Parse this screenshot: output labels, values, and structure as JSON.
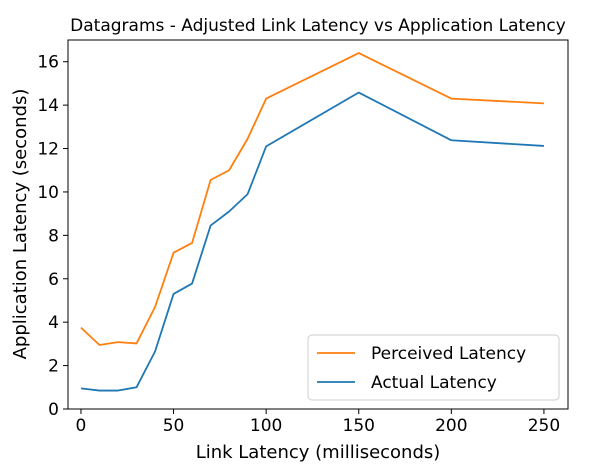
{
  "chart_data": {
    "type": "line",
    "title": "Datagrams - Adjusted Link Latency vs Application Latency",
    "xlabel": "Link Latency (milliseconds)",
    "ylabel": "Application Latency (seconds)",
    "xlim": [
      -7,
      263
    ],
    "ylim": [
      0,
      17
    ],
    "xticks": [
      0,
      50,
      100,
      150,
      200,
      250
    ],
    "yticks": [
      0,
      2,
      4,
      6,
      8,
      10,
      12,
      14,
      16
    ],
    "x": [
      0,
      10,
      20,
      30,
      40,
      50,
      60,
      70,
      80,
      90,
      100,
      150,
      200,
      250
    ],
    "series": [
      {
        "name": "Perceived Latency",
        "color": "#ff7f0e",
        "values": [
          3.75,
          2.95,
          3.08,
          3.02,
          4.7,
          7.2,
          7.65,
          10.55,
          11.0,
          12.45,
          14.3,
          16.4,
          14.3,
          14.08
        ]
      },
      {
        "name": "Actual Latency",
        "color": "#1f77b4",
        "values": [
          0.95,
          0.85,
          0.85,
          1.0,
          2.65,
          5.3,
          5.78,
          8.45,
          9.1,
          9.9,
          12.1,
          14.58,
          12.38,
          12.12
        ]
      }
    ],
    "legend": {
      "position": "lower-right",
      "entries": [
        "Perceived Latency",
        "Actual Latency"
      ]
    },
    "grid": false
  }
}
